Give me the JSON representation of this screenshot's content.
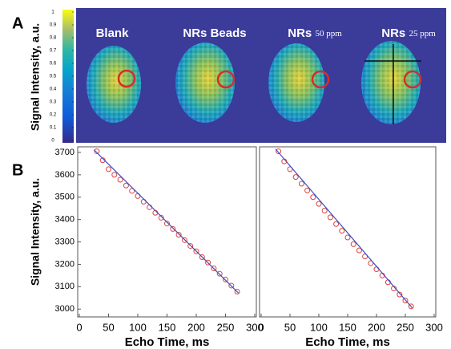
{
  "panel_labels": [
    "A",
    "B"
  ],
  "panel_a": {
    "ylabel": "Signal Intensity, a.u.",
    "colorbar_ticks": [
      0,
      0.1,
      0.2,
      0.3,
      0.4,
      0.5,
      0.6,
      0.7,
      0.8,
      0.9,
      1
    ],
    "images": [
      {
        "name": "Blank"
      },
      {
        "name": "NRs Beads"
      },
      {
        "name": "NRs",
        "conc": "50 ppm"
      },
      {
        "name": "NRs",
        "conc": "25 ppm"
      }
    ]
  },
  "chart_data": [
    {
      "type": "scatter",
      "ylabel": "Signal Intensity, a.u.",
      "xlabel": "Echo Time, ms",
      "xlim": [
        0,
        300
      ],
      "xticks": [
        0,
        50,
        100,
        150,
        200,
        250,
        300
      ],
      "ylim": [
        2965,
        3725
      ],
      "yticks": [
        3000,
        3100,
        3200,
        3300,
        3400,
        3500,
        3600,
        3700
      ],
      "series": [
        {
          "kind": "markers",
          "color": "#e0413a",
          "x": [
            30,
            40,
            50,
            60,
            70,
            80,
            90,
            100,
            110,
            120,
            130,
            140,
            150,
            160,
            170,
            180,
            190,
            200,
            210,
            220,
            230,
            240,
            250,
            260,
            270
          ],
          "values": [
            3705,
            3665,
            3625,
            3600,
            3578,
            3552,
            3528,
            3505,
            3480,
            3455,
            3430,
            3408,
            3382,
            3358,
            3332,
            3308,
            3282,
            3258,
            3232,
            3208,
            3182,
            3158,
            3132,
            3105,
            3078
          ]
        },
        {
          "kind": "line",
          "color": "#3b4fc4",
          "x": [
            25,
            272
          ],
          "values": [
            3712,
            3072
          ]
        }
      ]
    },
    {
      "type": "scatter",
      "xlabel": "Echo Time, ms",
      "xlim": [
        0,
        300
      ],
      "xticks": [
        0,
        50,
        100,
        150,
        200,
        250,
        300
      ],
      "ylim": [
        2965,
        3725
      ],
      "series": [
        {
          "kind": "markers",
          "color": "#e0413a",
          "x": [
            30,
            40,
            50,
            60,
            70,
            80,
            90,
            100,
            110,
            120,
            130,
            140,
            150,
            160,
            170,
            180,
            190,
            200,
            210,
            220,
            230,
            240,
            250,
            260
          ],
          "values": [
            3705,
            3660,
            3625,
            3590,
            3560,
            3530,
            3500,
            3470,
            3440,
            3410,
            3380,
            3350,
            3320,
            3290,
            3262,
            3235,
            3205,
            3178,
            3150,
            3120,
            3092,
            3065,
            3038,
            3012
          ]
        },
        {
          "kind": "line",
          "color": "#3b4fc4",
          "x": [
            25,
            262
          ],
          "values": [
            3715,
            3005
          ]
        }
      ]
    }
  ]
}
